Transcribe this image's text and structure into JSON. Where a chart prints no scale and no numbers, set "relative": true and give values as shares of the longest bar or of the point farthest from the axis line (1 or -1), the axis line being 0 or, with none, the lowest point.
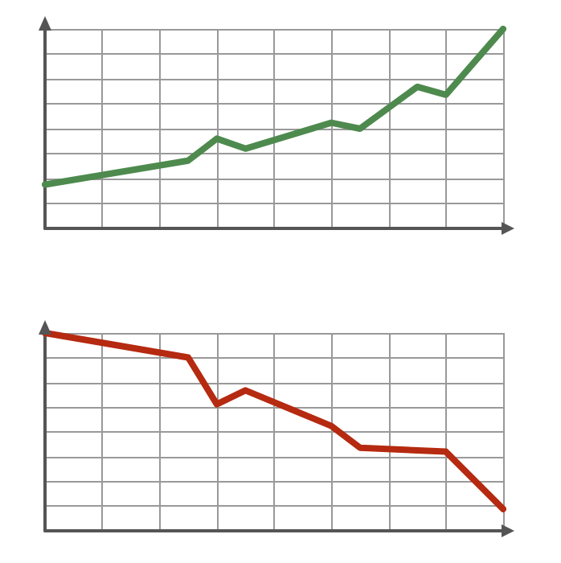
{
  "chart_data": [
    {
      "type": "line",
      "relative": true,
      "categories": [
        null,
        null,
        null,
        null,
        null,
        null,
        null,
        null,
        null,
        null,
        null,
        null,
        null,
        null,
        null,
        null,
        null
      ],
      "grid": true,
      "marker": "none",
      "line_style": "solid",
      "series": [
        {
          "color": "#4e8a4e",
          "values": [
            0.22,
            null,
            null,
            null,
            null,
            0.34,
            0.45,
            0.4,
            null,
            null,
            0.53,
            0.5,
            null,
            0.71,
            0.67,
            null,
            1
          ]
        }
      ]
    },
    {
      "type": "line",
      "relative": true,
      "categories": [
        null,
        null,
        null,
        null,
        null,
        null,
        null,
        null,
        null,
        null,
        null,
        null,
        null,
        null,
        null,
        null,
        null
      ],
      "grid": true,
      "marker": "none",
      "line_style": "solid",
      "series": [
        {
          "color": "#b52a10",
          "values": [
            1,
            null,
            null,
            null,
            null,
            0.876,
            0.64,
            0.71,
            null,
            null,
            0.53,
            0.42,
            null,
            null,
            0.4,
            null,
            0.11
          ]
        }
      ]
    }
  ]
}
